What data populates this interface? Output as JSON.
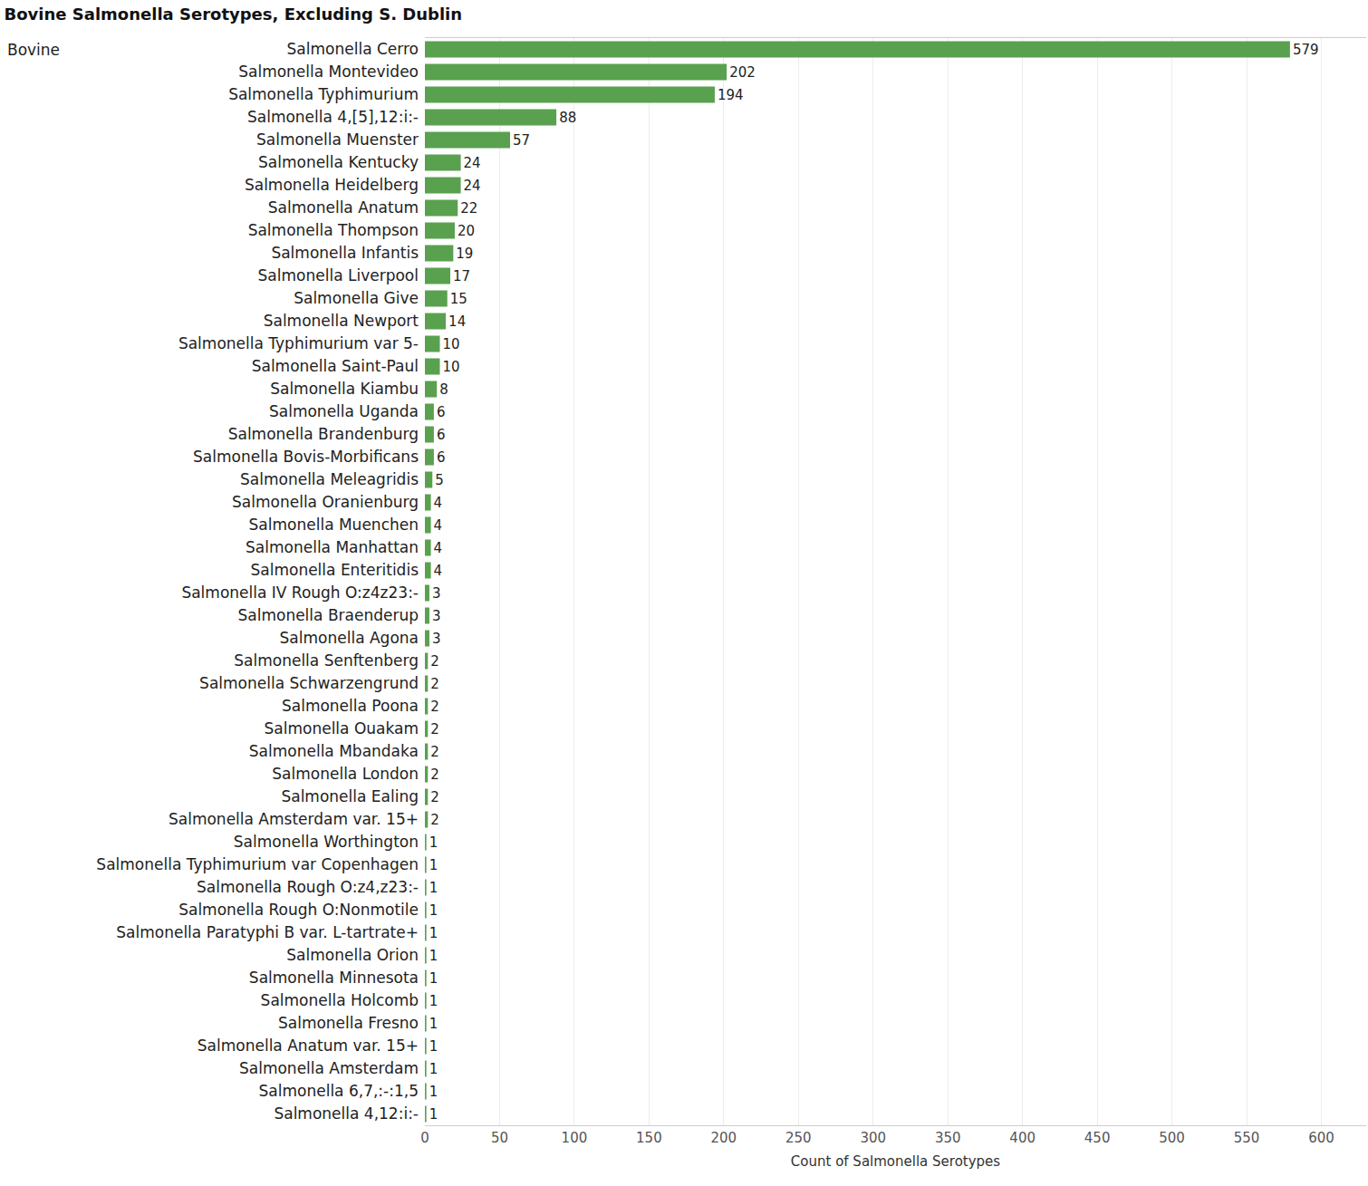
{
  "chart_data": {
    "type": "bar",
    "orientation": "horizontal",
    "title": "Bovine Salmonella Serotypes, Excluding S. Dublin",
    "x_label": "Count of Salmonella Serotypes",
    "annotations": [
      "Bovine"
    ],
    "categories": [
      "Salmonella Cerro",
      "Salmonella Montevideo",
      "Salmonella Typhimurium",
      "Salmonella 4,[5],12:i:-",
      "Salmonella Muenster",
      "Salmonella Kentucky",
      "Salmonella Heidelberg",
      "Salmonella Anatum",
      "Salmonella Thompson",
      "Salmonella Infantis",
      "Salmonella Liverpool",
      "Salmonella Give",
      "Salmonella Newport",
      "Salmonella Typhimurium var 5-",
      "Salmonella Saint-Paul",
      "Salmonella Kiambu",
      "Salmonella Uganda",
      "Salmonella Brandenburg",
      "Salmonella Bovis-Morbificans",
      "Salmonella Meleagridis",
      "Salmonella Oranienburg",
      "Salmonella Muenchen",
      "Salmonella Manhattan",
      "Salmonella Enteritidis",
      "Salmonella IV Rough O:z4z23:-",
      "Salmonella Braenderup",
      "Salmonella Agona",
      "Salmonella Senftenberg",
      "Salmonella Schwarzengrund",
      "Salmonella Poona",
      "Salmonella Ouakam",
      "Salmonella Mbandaka",
      "Salmonella London",
      "Salmonella Ealing",
      "Salmonella Amsterdam var. 15+",
      "Salmonella Worthington",
      "Salmonella Typhimurium var Copenhagen",
      "Salmonella Rough O:z4,z23:-",
      "Salmonella Rough O:Nonmotile",
      "Salmonella Paratyphi B var. L-tartrate+",
      "Salmonella Orion",
      "Salmonella Minnesota",
      "Salmonella Holcomb",
      "Salmonella Fresno",
      "Salmonella Anatum var. 15+",
      "Salmonella Amsterdam",
      "Salmonella 6,7,:-:1,5",
      "Salmonella 4,12:i:-"
    ],
    "values": [
      579,
      202,
      194,
      88,
      57,
      24,
      24,
      22,
      20,
      19,
      17,
      15,
      14,
      10,
      10,
      8,
      6,
      6,
      6,
      5,
      4,
      4,
      4,
      4,
      3,
      3,
      3,
      2,
      2,
      2,
      2,
      2,
      2,
      2,
      2,
      1,
      1,
      1,
      1,
      1,
      1,
      1,
      1,
      1,
      1,
      1,
      1,
      1
    ],
    "color": "#59a14f",
    "xlim": [
      0,
      630
    ],
    "xticks": [
      0,
      50,
      100,
      150,
      200,
      250,
      300,
      350,
      400,
      450,
      500,
      550,
      600
    ],
    "grid": true,
    "data_labels": true
  }
}
